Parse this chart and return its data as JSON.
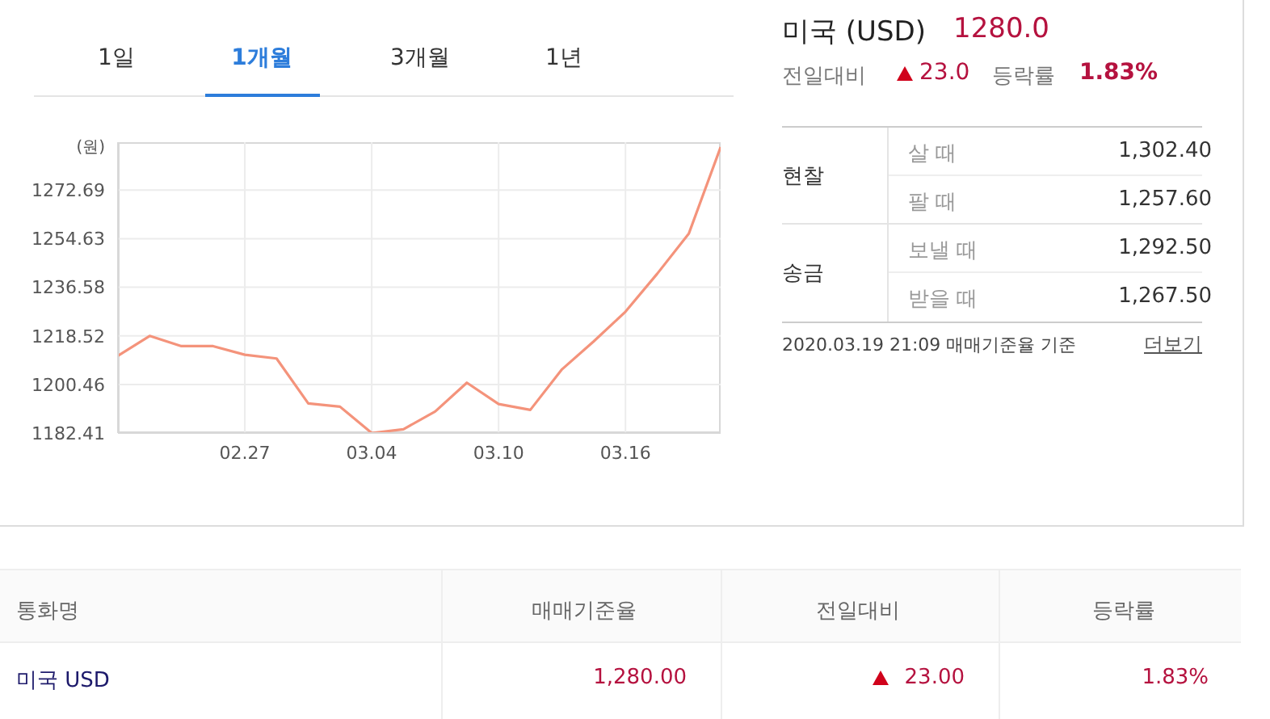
{
  "chart_data": [
    {
      "type": "line",
      "ylabel": "(원)",
      "categories": [
        null,
        null,
        null,
        null,
        "02.27",
        null,
        null,
        null,
        "03.04",
        null,
        null,
        null,
        "03.10",
        null,
        null,
        null,
        "03.16",
        null,
        null,
        null
      ],
      "values": [
        1211.1,
        1218.5,
        1214.7,
        1214.7,
        1211.5,
        1210.1,
        1193.4,
        1192.2,
        1182.41,
        1183.8,
        1190.4,
        1201.1,
        1193.2,
        1191.0,
        1206.1,
        1216.5,
        1227.5,
        1241.6,
        1256.6,
        1288.7
      ],
      "color": "#f4937b",
      "ylim": [
        1182.41,
        1290.5
      ],
      "yticks": [
        1182.41,
        1200.46,
        1218.52,
        1236.58,
        1254.63,
        1272.69
      ],
      "grid": true,
      "marker": "none",
      "line_style": "solid"
    },
    {
      "type": "other",
      "annotations": [
        "1일",
        "1개월",
        "3개월",
        "1년"
      ]
    },
    {
      "type": "other",
      "annotations": [
        "미국 (USD)",
        "1280.0",
        "전일대비",
        "23.0",
        "등락률",
        "1.83%",
        "현찰",
        "살 때",
        "1,302.40",
        "팔 때",
        "1,257.60",
        "송금",
        "보낼 때",
        "1,292.50",
        "받을 때",
        "1,267.50",
        "2020.03.19 21:09 매매기준율 기준",
        "더보기"
      ]
    },
    {
      "type": "other",
      "annotations": [
        "통화명",
        "매매기준율",
        "전일대비",
        "등락률",
        "미국 USD",
        "1,280.00",
        "23.00",
        "1.83%"
      ]
    }
  ]
}
